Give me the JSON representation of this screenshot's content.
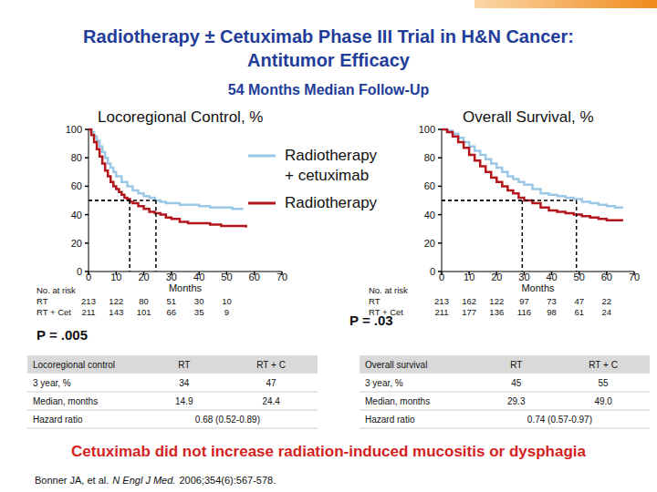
{
  "slide": {
    "title": [
      "Radiotherapy ± Cetuximab Phase III Trial in H&N Cancer:",
      "Antitumor Efficacy"
    ],
    "subtitle": "54 Months Median Follow-Up",
    "note": "Cetuximab did not increase radiation-induced mucositis or dysphagia",
    "citation": [
      "Bonner JA, et al.",
      "N Engl J Med.",
      "2006;354(6):567-578."
    ]
  },
  "chart_data": [
    {
      "type": "line",
      "title": "Locoregional Control, %",
      "xlabel": "Months",
      "xlim": [
        0,
        70
      ],
      "xticks": [
        0,
        10,
        20,
        30,
        40,
        50,
        60,
        70
      ],
      "ylim": [
        0,
        100
      ],
      "yticks": [
        0,
        20,
        40,
        60,
        80,
        100
      ],
      "legend": "right",
      "line_style": "step",
      "reference_y": 50,
      "series": [
        {
          "name": "Radiotherapy + cetuximab",
          "color": "#9cc8e8",
          "median": 24.4,
          "x": [
            0,
            1,
            2,
            3,
            4,
            5,
            6,
            7,
            8,
            9,
            10,
            12,
            14,
            16,
            18,
            20,
            22,
            24,
            26,
            28,
            30,
            33,
            36,
            40,
            44,
            48,
            52,
            56
          ],
          "values": [
            100,
            98,
            95,
            92,
            88,
            84,
            80,
            76,
            73,
            70,
            67,
            63,
            60,
            57,
            55,
            53,
            52,
            50,
            49,
            48,
            48,
            47,
            47,
            46,
            45,
            45,
            44,
            44
          ]
        },
        {
          "name": "Radiotherapy",
          "color": "#b3151b",
          "median": 14.9,
          "x": [
            0,
            1,
            2,
            3,
            4,
            5,
            6,
            7,
            8,
            9,
            10,
            11,
            12,
            13,
            14,
            15,
            16,
            18,
            20,
            22,
            24,
            26,
            28,
            30,
            33,
            36,
            40,
            44,
            48,
            52,
            57
          ],
          "values": [
            100,
            96,
            91,
            86,
            81,
            76,
            71,
            67,
            63,
            60,
            58,
            56,
            54,
            52,
            51,
            49,
            48,
            46,
            44,
            42,
            41,
            40,
            38,
            37,
            35,
            34,
            34,
            33,
            32,
            32,
            31
          ]
        }
      ],
      "at_risk": {
        "title": "No. at risk",
        "rows": [
          {
            "label": "RT",
            "x": [
              0,
              10,
              20,
              30,
              40,
              50
            ],
            "values": [
              213,
              122,
              80,
              51,
              30,
              10
            ]
          },
          {
            "label": "RT + Cet",
            "x": [
              0,
              10,
              20,
              30,
              40,
              50
            ],
            "values": [
              211,
              143,
              101,
              66,
              35,
              9
            ]
          }
        ]
      },
      "p_value": "P = .005",
      "summary": {
        "header": [
          "Locoregional control",
          "RT",
          "RT + C"
        ],
        "rows": [
          [
            "3 year, %",
            34,
            47
          ],
          [
            "Median, months",
            14.9,
            24.4
          ],
          [
            "Hazard ratio",
            "0.68 (0.52-0.89)"
          ]
        ]
      }
    },
    {
      "type": "line",
      "title": "Overall Survival, %",
      "xlabel": "Months",
      "xlim": [
        0,
        70
      ],
      "xticks": [
        0,
        10,
        20,
        30,
        40,
        50,
        60,
        70
      ],
      "ylim": [
        0,
        100
      ],
      "yticks": [
        0,
        20,
        40,
        60,
        80,
        100
      ],
      "line_style": "step",
      "reference_y": 50,
      "series": [
        {
          "color": "#9cc8e8",
          "median": 49,
          "x": [
            0,
            2,
            4,
            6,
            8,
            10,
            12,
            14,
            16,
            18,
            20,
            22,
            24,
            26,
            28,
            30,
            33,
            36,
            39,
            42,
            45,
            48,
            51,
            54,
            57,
            60,
            63,
            66
          ],
          "values": [
            100,
            99,
            97,
            94,
            91,
            88,
            85,
            82,
            79,
            76,
            73,
            70,
            67,
            65,
            63,
            61,
            58,
            55,
            54,
            53,
            52,
            51,
            49,
            48,
            47,
            46,
            45,
            45
          ]
        },
        {
          "color": "#b3151b",
          "median": 29.3,
          "x": [
            0,
            2,
            4,
            6,
            8,
            10,
            12,
            14,
            16,
            18,
            20,
            22,
            24,
            26,
            28,
            30,
            33,
            36,
            39,
            42,
            45,
            48,
            51,
            54,
            57,
            60,
            63,
            66
          ],
          "values": [
            100,
            98,
            95,
            91,
            87,
            82,
            78,
            74,
            70,
            66,
            63,
            60,
            57,
            55,
            52,
            50,
            48,
            45,
            43,
            42,
            41,
            40,
            39,
            38,
            37,
            36,
            36,
            36
          ]
        }
      ],
      "at_risk": {
        "title": "No. at risk",
        "rows": [
          {
            "label": "RT",
            "x": [
              0,
              10,
              20,
              30,
              40,
              50,
              60
            ],
            "values": [
              213,
              162,
              122,
              97,
              73,
              47,
              22
            ]
          },
          {
            "label": "RT + Cet",
            "x": [
              0,
              10,
              20,
              30,
              40,
              50,
              60
            ],
            "values": [
              211,
              177,
              136,
              116,
              98,
              61,
              24
            ]
          }
        ]
      },
      "p_value": "P = .03",
      "summary": {
        "header": [
          "Overall survival",
          "RT",
          "RT + C"
        ],
        "rows": [
          [
            "3 year, %",
            45,
            55
          ],
          [
            "Median, months",
            29.3,
            "49.0"
          ],
          [
            "Hazard ratio",
            "0.74 (0.57-0.97)"
          ]
        ]
      }
    }
  ]
}
